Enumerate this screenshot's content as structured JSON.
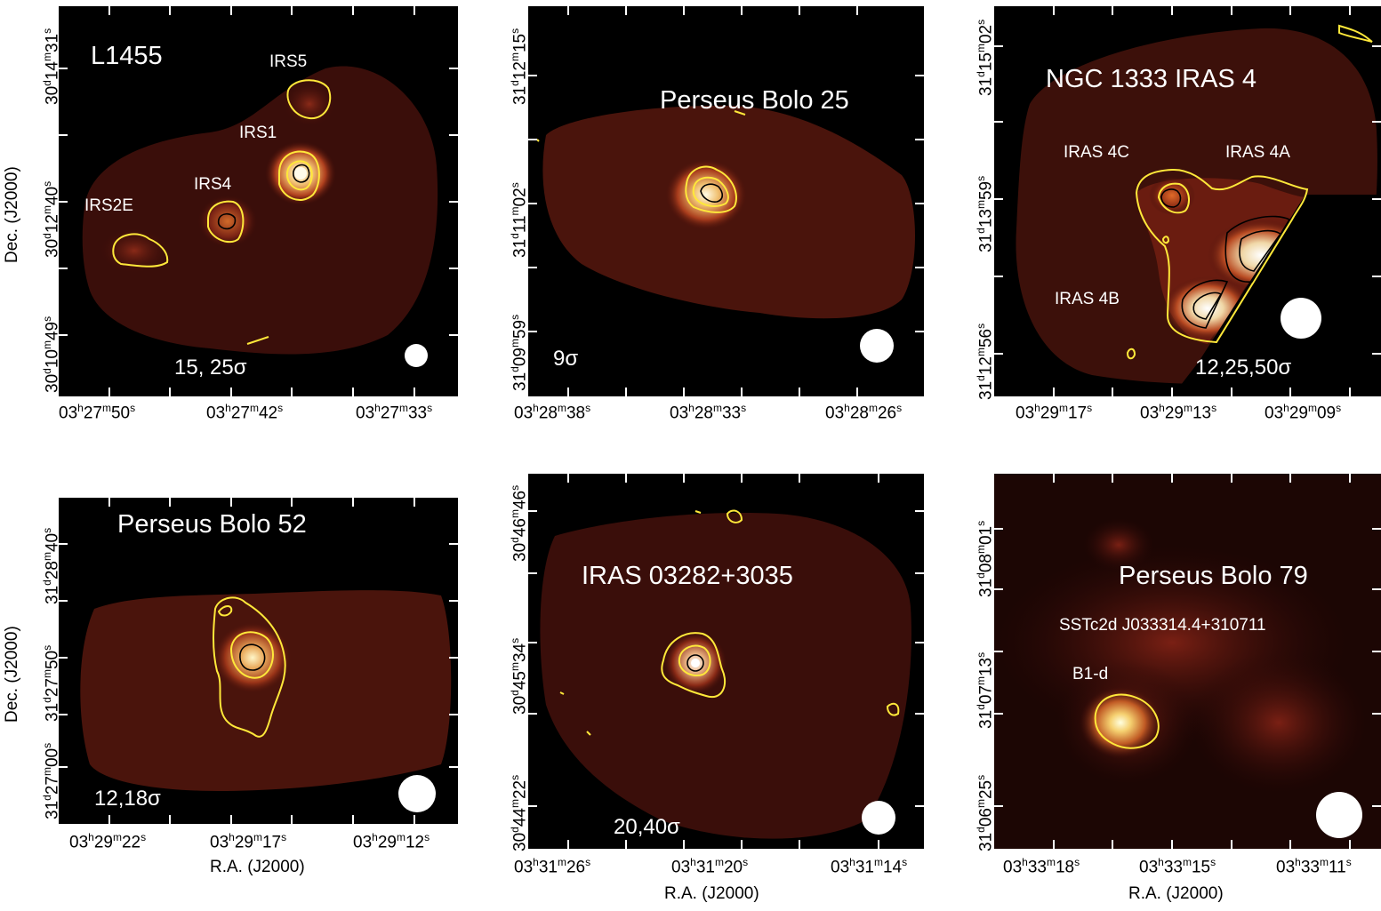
{
  "axis_labels": {
    "ra": "R.A. (J2000)",
    "dec": "Dec. (J2000)"
  },
  "panels": [
    {
      "title": "L1455",
      "sigma": "15, 25σ",
      "sources": [
        "IRS5",
        "IRS1",
        "IRS4",
        "IRS2E"
      ],
      "ra_ticks": [
        {
          "h": "03",
          "m": "27",
          "s": "50"
        },
        {
          "h": "03",
          "m": "27",
          "s": "42"
        },
        {
          "h": "03",
          "m": "27",
          "s": "33"
        }
      ],
      "dec_ticks": [
        {
          "d": "30",
          "m": "14",
          "s": "31"
        },
        {
          "d": "30",
          "m": "12",
          "s": "40"
        },
        {
          "d": "30",
          "m": "10",
          "s": "49"
        }
      ]
    },
    {
      "title": "Perseus Bolo 25",
      "sigma": "9σ",
      "sources": [],
      "ra_ticks": [
        {
          "h": "03",
          "m": "28",
          "s": "38"
        },
        {
          "h": "03",
          "m": "28",
          "s": "33"
        },
        {
          "h": "03",
          "m": "28",
          "s": "26"
        }
      ],
      "dec_ticks": [
        {
          "d": "31",
          "m": "12",
          "s": "15"
        },
        {
          "d": "31",
          "m": "11",
          "s": "02"
        },
        {
          "d": "31",
          "m": "09",
          "s": "59"
        }
      ]
    },
    {
      "title": "NGC 1333 IRAS 4",
      "sigma": "12,25,50σ",
      "sources": [
        "IRAS 4C",
        "IRAS 4A",
        "IRAS 4B"
      ],
      "ra_ticks": [
        {
          "h": "03",
          "m": "29",
          "s": "17"
        },
        {
          "h": "03",
          "m": "29",
          "s": "13"
        },
        {
          "h": "03",
          "m": "29",
          "s": "09"
        }
      ],
      "dec_ticks": [
        {
          "d": "31",
          "m": "15",
          "s": "02"
        },
        {
          "d": "31",
          "m": "13",
          "s": "59"
        },
        {
          "d": "31",
          "m": "12",
          "s": "56"
        }
      ]
    },
    {
      "title": "Perseus Bolo 52",
      "sigma": "12,18σ",
      "sources": [],
      "ra_ticks": [
        {
          "h": "03",
          "m": "29",
          "s": "22"
        },
        {
          "h": "03",
          "m": "29",
          "s": "17"
        },
        {
          "h": "03",
          "m": "29",
          "s": "12"
        }
      ],
      "dec_ticks": [
        {
          "d": "31",
          "m": "28",
          "s": "40"
        },
        {
          "d": "31",
          "m": "27",
          "s": "50"
        },
        {
          "d": "31",
          "m": "27",
          "s": "00"
        }
      ]
    },
    {
      "title": "IRAS 03282+3035",
      "sigma": "20,40σ",
      "sources": [],
      "ra_ticks": [
        {
          "h": "03",
          "m": "31",
          "s": "26"
        },
        {
          "h": "03",
          "m": "31",
          "s": "20"
        },
        {
          "h": "03",
          "m": "31",
          "s": "14"
        }
      ],
      "dec_ticks": [
        {
          "d": "30",
          "m": "46",
          "s": "46"
        },
        {
          "d": "30",
          "m": "45",
          "s": "34"
        },
        {
          "d": "30",
          "m": "44",
          "s": "22"
        }
      ]
    },
    {
      "title": "Perseus Bolo 79",
      "sigma": "",
      "sources": [
        "SSTc2d J033314.4+310711",
        "B1-d"
      ],
      "ra_ticks": [
        {
          "h": "03",
          "m": "33",
          "s": "18"
        },
        {
          "h": "03",
          "m": "33",
          "s": "15"
        },
        {
          "h": "03",
          "m": "33",
          "s": "11"
        }
      ],
      "dec_ticks": [
        {
          "d": "31",
          "m": "08",
          "s": "01"
        },
        {
          "d": "31",
          "m": "07",
          "s": "13"
        },
        {
          "d": "31",
          "m": "06",
          "s": "25"
        }
      ]
    }
  ]
}
